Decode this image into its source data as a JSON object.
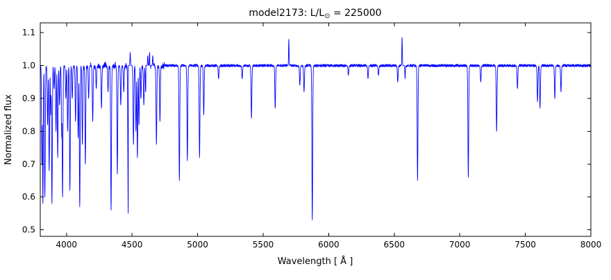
{
  "chart_data": {
    "type": "line",
    "title": "model2173: L/L⊙ = 225000",
    "title_parts": {
      "prefix": "model2173: L/L",
      "sub": "⊙",
      "suffix": " = 225000"
    },
    "xlabel": "Wavelength [ Å ]",
    "ylabel": "Normalized flux",
    "xlim": [
      3800,
      8000
    ],
    "ylim": [
      0.48,
      1.13
    ],
    "xticks": [
      4000,
      4500,
      5000,
      5500,
      6000,
      6500,
      7000,
      7500,
      8000
    ],
    "xtick_labels": [
      "4000",
      "4500",
      "5000",
      "5500",
      "6000",
      "6500",
      "7000",
      "7500",
      "8000"
    ],
    "yticks": [
      0.5,
      0.6,
      0.7,
      0.8,
      0.9,
      1.0,
      1.1
    ],
    "ytick_labels": [
      "0.5",
      "0.6",
      "0.7",
      "0.8",
      "0.9",
      "1.0",
      "1.1"
    ],
    "line_color": "#0000ff",
    "grid": false,
    "legend": null,
    "baseline": 1.0,
    "noise_amplitude": 0.004,
    "features_format": [
      "wavelength_angstrom",
      "flux_extreme",
      "sigma_angstrom"
    ],
    "features": [
      [
        3813,
        0.7,
        3
      ],
      [
        3820,
        0.58,
        3
      ],
      [
        3835,
        0.6,
        3
      ],
      [
        3856,
        0.82,
        3
      ],
      [
        3868,
        0.68,
        3
      ],
      [
        3880,
        0.85,
        3
      ],
      [
        3889,
        0.58,
        3
      ],
      [
        3905,
        0.93,
        3
      ],
      [
        3920,
        0.8,
        3
      ],
      [
        3933,
        0.72,
        3
      ],
      [
        3947,
        0.88,
        3
      ],
      [
        3964,
        0.78,
        3
      ],
      [
        3970,
        0.6,
        3
      ],
      [
        3995,
        0.9,
        3
      ],
      [
        4009,
        0.8,
        3
      ],
      [
        4026,
        0.62,
        3
      ],
      [
        4044,
        0.9,
        3
      ],
      [
        4069,
        0.83,
        3
      ],
      [
        4089,
        0.78,
        3
      ],
      [
        4101,
        0.57,
        3
      ],
      [
        4121,
        0.76,
        3
      ],
      [
        4144,
        0.7,
        3
      ],
      [
        4169,
        0.9,
        3
      ],
      [
        4200,
        0.83,
        3
      ],
      [
        4227,
        0.93,
        3
      ],
      [
        4267,
        0.87,
        3
      ],
      [
        4317,
        0.92,
        3
      ],
      [
        4340,
        0.56,
        3
      ],
      [
        4388,
        0.67,
        3
      ],
      [
        4414,
        0.88,
        3
      ],
      [
        4437,
        0.92,
        3
      ],
      [
        4471,
        0.55,
        3
      ],
      [
        4481,
        0.84,
        3
      ],
      [
        4486,
        1.04,
        2
      ],
      [
        4504,
        1.05,
        2
      ],
      [
        4511,
        0.76,
        3
      ],
      [
        4530,
        0.8,
        3
      ],
      [
        4541,
        0.72,
        3
      ],
      [
        4553,
        0.82,
        3
      ],
      [
        4568,
        0.9,
        3
      ],
      [
        4590,
        0.88,
        3
      ],
      [
        4604,
        0.92,
        3
      ],
      [
        4620,
        1.03,
        2
      ],
      [
        4634,
        1.04,
        2
      ],
      [
        4641,
        1.05,
        2
      ],
      [
        4650,
        0.86,
        3
      ],
      [
        4658,
        1.03,
        2
      ],
      [
        4686,
        0.76,
        3
      ],
      [
        4713,
        0.83,
        3
      ],
      [
        4861,
        0.65,
        3
      ],
      [
        4922,
        0.71,
        3
      ],
      [
        5015,
        0.72,
        3
      ],
      [
        5047,
        0.85,
        3
      ],
      [
        5160,
        0.96,
        3
      ],
      [
        5340,
        0.96,
        3
      ],
      [
        5411,
        0.84,
        3
      ],
      [
        5592,
        0.87,
        3
      ],
      [
        5696,
        1.08,
        2
      ],
      [
        5780,
        0.94,
        3
      ],
      [
        5812,
        0.92,
        3
      ],
      [
        5875,
        0.53,
        3
      ],
      [
        6150,
        0.97,
        3
      ],
      [
        6300,
        0.96,
        3
      ],
      [
        6380,
        0.97,
        3
      ],
      [
        6527,
        0.95,
        3
      ],
      [
        6560,
        1.085,
        2
      ],
      [
        6583,
        0.96,
        2
      ],
      [
        6678,
        0.65,
        3
      ],
      [
        7065,
        0.66,
        3
      ],
      [
        7160,
        0.95,
        3
      ],
      [
        7281,
        0.8,
        3
      ],
      [
        7440,
        0.93,
        3
      ],
      [
        7593,
        0.89,
        3
      ],
      [
        7612,
        0.87,
        3
      ],
      [
        7725,
        0.9,
        3
      ],
      [
        7772,
        0.92,
        3
      ]
    ]
  }
}
